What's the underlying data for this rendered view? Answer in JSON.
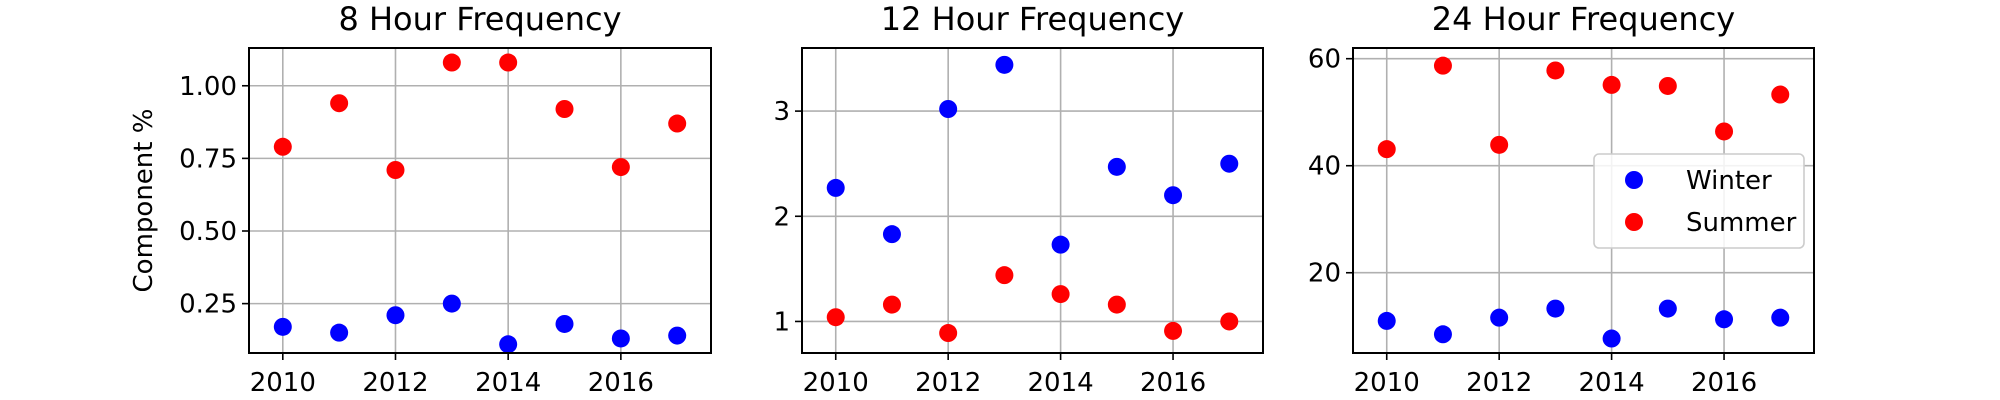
{
  "figure": {
    "background": "#ffffff"
  },
  "colors": {
    "winter": "#0000ff",
    "summer": "#ff0000",
    "grid": "#b0b0b0",
    "axes": "#000000"
  },
  "legend": {
    "location": "right-center",
    "panel_index": 2,
    "entries": [
      "Winter",
      "Summer"
    ]
  },
  "chart_data": [
    {
      "type": "scatter",
      "title": "8 Hour Frequency",
      "ylabel": "Component %",
      "grid": true,
      "xlim": [
        2009.4,
        2017.6
      ],
      "ylim": [
        0.08,
        1.13
      ],
      "xticks": [
        2010,
        2012,
        2014,
        2016
      ],
      "yticks": [
        0.25,
        0.5,
        0.75,
        1.0
      ],
      "ytick_labels": [
        "0.25",
        "0.50",
        "0.75",
        "1.00"
      ],
      "x": [
        2010,
        2011,
        2012,
        2013,
        2014,
        2015,
        2016,
        2017
      ],
      "series": [
        {
          "name": "Winter",
          "color": "#0000ff",
          "values": [
            0.17,
            0.15,
            0.21,
            0.25,
            0.11,
            0.18,
            0.13,
            0.14
          ]
        },
        {
          "name": "Summer",
          "color": "#ff0000",
          "values": [
            0.79,
            0.94,
            0.71,
            1.08,
            1.08,
            0.92,
            0.72,
            0.87
          ]
        }
      ]
    },
    {
      "type": "scatter",
      "title": "12 Hour Frequency",
      "ylabel": "",
      "grid": true,
      "xlim": [
        2009.4,
        2017.6
      ],
      "ylim": [
        0.7,
        3.6
      ],
      "xticks": [
        2010,
        2012,
        2014,
        2016
      ],
      "yticks": [
        1,
        2,
        3
      ],
      "ytick_labels": [
        "1",
        "2",
        "3"
      ],
      "x": [
        2010,
        2011,
        2012,
        2013,
        2014,
        2015,
        2016,
        2017
      ],
      "series": [
        {
          "name": "Winter",
          "color": "#0000ff",
          "values": [
            2.27,
            1.83,
            3.02,
            3.44,
            1.73,
            2.47,
            2.2,
            2.5
          ]
        },
        {
          "name": "Summer",
          "color": "#ff0000",
          "values": [
            1.04,
            1.16,
            0.89,
            1.44,
            1.26,
            1.16,
            0.91,
            1.0
          ]
        }
      ]
    },
    {
      "type": "scatter",
      "title": "24 Hour Frequency",
      "ylabel": "",
      "grid": true,
      "xlim": [
        2009.4,
        2017.6
      ],
      "ylim": [
        5,
        62
      ],
      "xticks": [
        2010,
        2012,
        2014,
        2016
      ],
      "yticks": [
        20,
        40,
        60
      ],
      "ytick_labels": [
        "20",
        "40",
        "60"
      ],
      "x": [
        2010,
        2011,
        2012,
        2013,
        2014,
        2015,
        2016,
        2017
      ],
      "series": [
        {
          "name": "Winter",
          "color": "#0000ff",
          "values": [
            11,
            8.5,
            11.6,
            13.3,
            7.7,
            13.3,
            11.3,
            11.6
          ]
        },
        {
          "name": "Summer",
          "color": "#ff0000",
          "values": [
            43.1,
            58.7,
            43.9,
            57.8,
            55.1,
            54.9,
            46.4,
            53.3
          ]
        }
      ]
    }
  ]
}
